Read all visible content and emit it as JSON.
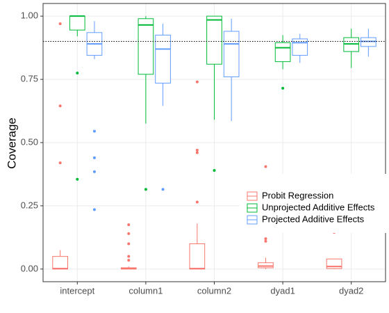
{
  "chart_data": {
    "type": "box",
    "y_label": "Coverage",
    "categories": [
      "intercept",
      "column1",
      "column2",
      "dyad1",
      "dyad2"
    ],
    "ylim": [
      -0.05,
      1.05
    ],
    "yticks": [
      {
        "value": 0,
        "label": "0.00"
      },
      0.25,
      {
        "value": 0.5,
        "label": "0.50"
      },
      0.75,
      {
        "value": 1,
        "label": "1.00"
      }
    ],
    "grid": true,
    "reference_line": 0.9,
    "legend": "right",
    "series": [
      {
        "name": "Probit Regression",
        "color": "#F8766D",
        "boxes": [
          {
            "whisker_low": 0,
            "q1": 0,
            "median": 0.002,
            "q3": 0.05,
            "whisker_high": 0.075,
            "outliers": [
              0.97,
              0.645,
              0.42
            ]
          },
          {
            "whisker_low": 0,
            "q1": 0,
            "median": 0.002,
            "q3": 0.005,
            "whisker_high": 0.01,
            "outliers": [
              0.175,
              0.14,
              0.1,
              0.05,
              0.035
            ]
          },
          {
            "whisker_low": 0,
            "q1": 0,
            "median": 0.002,
            "q3": 0.1,
            "whisker_high": 0.18,
            "outliers": [
              0.74,
              0.47,
              0.46,
              0.265
            ]
          },
          {
            "whisker_low": 0,
            "q1": 0.005,
            "median": 0.012,
            "q3": 0.025,
            "whisker_high": 0.045,
            "outliers": [
              0.405,
              0.12,
              0.11
            ]
          },
          {
            "whisker_low": 0,
            "q1": 0.002,
            "median": 0.01,
            "q3": 0.04,
            "whisker_high": 0.04,
            "outliers": [
              0.145
            ]
          }
        ]
      },
      {
        "name": "Unprojected Additive Effects",
        "color": "#00BA38",
        "boxes": [
          {
            "whisker_low": 0.92,
            "q1": 0.945,
            "median": 1,
            "q3": 1,
            "whisker_high": 1,
            "outliers": [
              0.775,
              0.355
            ]
          },
          {
            "whisker_low": 0.575,
            "q1": 0.77,
            "median": 0.965,
            "q3": 0.99,
            "whisker_high": 1,
            "outliers": [
              0.315
            ]
          },
          {
            "whisker_low": 0.59,
            "q1": 0.81,
            "median": 0.985,
            "q3": 1,
            "whisker_high": 1,
            "outliers": [
              0.39
            ]
          },
          {
            "whisker_low": 0.79,
            "q1": 0.82,
            "median": 0.875,
            "q3": 0.895,
            "whisker_high": 0.925,
            "outliers": [
              0.715
            ]
          },
          {
            "whisker_low": 0.795,
            "q1": 0.86,
            "median": 0.89,
            "q3": 0.915,
            "whisker_high": 0.95,
            "outliers": []
          }
        ]
      },
      {
        "name": "Projected Additive Effects",
        "color": "#619CFF",
        "boxes": [
          {
            "whisker_low": 0.83,
            "q1": 0.845,
            "median": 0.89,
            "q3": 0.935,
            "whisker_high": 0.98,
            "outliers": [
              0.545,
              0.44,
              0.385,
              0.235
            ]
          },
          {
            "whisker_low": 0.645,
            "q1": 0.735,
            "median": 0.87,
            "q3": 0.925,
            "whisker_high": 0.97,
            "outliers": [
              0.315
            ]
          },
          {
            "whisker_low": 0.585,
            "q1": 0.76,
            "median": 0.89,
            "q3": 0.94,
            "whisker_high": 0.99,
            "outliers": []
          },
          {
            "whisker_low": 0.815,
            "q1": 0.845,
            "median": 0.895,
            "q3": 0.91,
            "whisker_high": 0.93,
            "outliers": []
          },
          {
            "whisker_low": 0.84,
            "q1": 0.88,
            "median": 0.9,
            "q3": 0.915,
            "whisker_high": 0.95,
            "outliers": []
          }
        ]
      }
    ]
  }
}
